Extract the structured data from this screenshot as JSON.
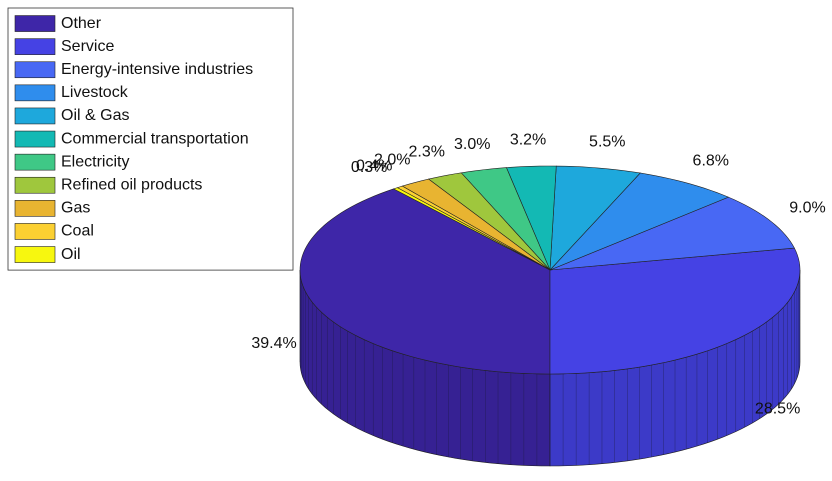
{
  "chart_data": {
    "type": "pie3d",
    "categories": [
      "Other",
      "Service",
      "Energy-intensive industries",
      "Livestock",
      "Oil & Gas",
      "Commercial transportation",
      "Electricity",
      "Refined oil products",
      "Gas",
      "Coal",
      "Oil"
    ],
    "values": [
      39.4,
      28.5,
      9.0,
      6.8,
      5.5,
      3.2,
      3.0,
      2.3,
      2.0,
      0.4,
      0.3
    ],
    "value_labels": [
      "39.4%",
      "28.5%",
      "9.0%",
      "6.8%",
      "5.5%",
      "3.2%",
      "3.0%",
      "2.3%",
      "2.0%",
      "0.4%",
      "0.3%"
    ],
    "colors": [
      "#3e26a8",
      "#4542e4",
      "#4868f4",
      "#2f8ded",
      "#1ea8dc",
      "#13b9b4",
      "#3fc886",
      "#9fc73d",
      "#e8b431",
      "#fbd032",
      "#f7f70f"
    ],
    "legend": "upper left"
  }
}
